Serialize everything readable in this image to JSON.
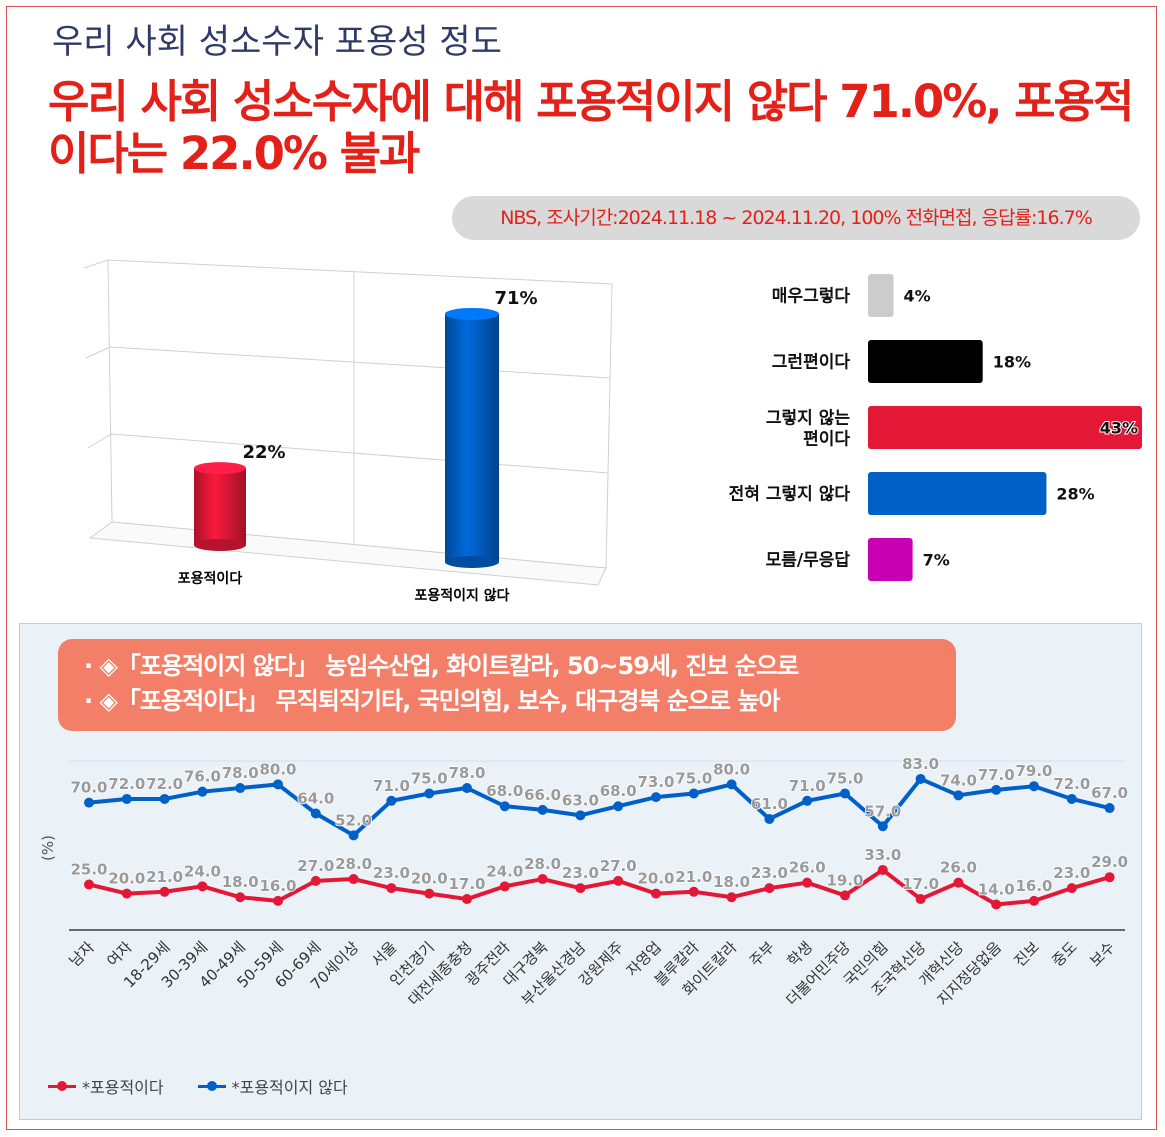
{
  "page": {
    "title": "우리 사회 성소수자 포용성 정도",
    "headline": "우리 사회 성소수자에 대해 포용적이지 않다 71.0%, 포용적이다는 22.0% 불과",
    "source": "NBS, 조사기간:2024.11.18 ~ 2024.11.20, 100% 전화면접, 응답률:16.7%",
    "callout": [
      "· ◈「포용적이지 않다」 농임수산업, 화이트칼라, 50~59세, 진보 순으로",
      "· ◈「포용적이다」 무직퇴직기타, 국민의힘, 보수, 대구경북 순으로 높아"
    ]
  },
  "colors": {
    "red": "#e31837",
    "blue": "#0060c8",
    "black": "#000000",
    "gray": "#cccccc",
    "magenta": "#c800b4",
    "headline_red": "#e32119"
  },
  "chart_data": [
    {
      "type": "bar",
      "title": "",
      "categories": [
        "포용적이다",
        "포용적이지 않다"
      ],
      "values": [
        22,
        71
      ],
      "value_labels": [
        "22%",
        "71%"
      ],
      "colors": [
        "#e31837",
        "#0060c8"
      ],
      "ylim": [
        0,
        75
      ]
    },
    {
      "type": "bar",
      "orientation": "horizontal",
      "categories": [
        "매우그렇다",
        "그런편이다",
        "그렇지 않는 편이다",
        "전혀 그렇지 않다",
        "모름/무응답"
      ],
      "values": [
        4,
        18,
        43,
        28,
        7
      ],
      "value_labels": [
        "4%",
        "18%",
        "43%",
        "28%",
        "7%"
      ],
      "colors": [
        "#cccccc",
        "#000000",
        "#e31837",
        "#0060c8",
        "#c800b4"
      ],
      "xlim": [
        0,
        43
      ]
    },
    {
      "type": "line",
      "ylabel": "(%)",
      "ylim": [
        0,
        100
      ],
      "x": [
        "남자",
        "여자",
        "18-29세",
        "30-39세",
        "40-49세",
        "50-59세",
        "60-69세",
        "70세이상",
        "서울",
        "인천경기",
        "대전세종충청",
        "광주전라",
        "대구경북",
        "부산울산경남",
        "강원제주",
        "자영업",
        "블루칼라",
        "화이트칼라",
        "주부",
        "학생",
        "더불어민주당",
        "국민의힘",
        "조국혁신당",
        "개혁신당",
        "지지정당없음",
        "진보",
        "중도",
        "보수"
      ],
      "series": [
        {
          "name": "*포용적이다",
          "color": "#e31837",
          "values": [
            25.0,
            20.0,
            21.0,
            24.0,
            18.0,
            16.0,
            27.0,
            28.0,
            23.0,
            20.0,
            17.0,
            24.0,
            28.0,
            23.0,
            27.0,
            20.0,
            21.0,
            18.0,
            23.0,
            26.0,
            19.0,
            33.0,
            17.0,
            26.0,
            14.0,
            16.0,
            23.0,
            29.0
          ],
          "labels": [
            "25.0",
            "20.0",
            "21.0",
            "24.0",
            "18.0",
            "16.0",
            "27.0",
            "28.0",
            "23.0",
            "20.0",
            "17.0",
            "24.0",
            "28.0",
            "23.0",
            "27.0",
            "20.0",
            "21.0",
            "18.0",
            "23.0",
            "26.0",
            "19.0",
            "33.0",
            "17.0",
            "26.0",
            "14.0",
            "16.0",
            "23.0",
            "29.0"
          ]
        },
        {
          "name": "*포용적이지 않다",
          "color": "#0060c8",
          "values": [
            70.0,
            72.0,
            72.0,
            76.0,
            78.0,
            80.0,
            64.0,
            52.0,
            71.0,
            75.0,
            78.0,
            68.0,
            66.0,
            63.0,
            68.0,
            73.0,
            75.0,
            80.0,
            61.0,
            71.0,
            75.0,
            57.0,
            83.0,
            74.0,
            77.0,
            79.0,
            72.0,
            67.0
          ],
          "labels": [
            "70.0",
            "72.0",
            "72.0",
            "76.0",
            "78.0",
            "80.0",
            "64.0",
            "52.0",
            "71.0",
            "75.0",
            "78.0",
            "68.0",
            "66.0",
            "63.0",
            "68.0",
            "73.0",
            "75.0",
            "80.0",
            "61.0",
            "71.0",
            "75.0",
            "57.0",
            "83.0",
            "74.0",
            "77.0",
            "79.0",
            "72.0",
            "67.0"
          ]
        }
      ],
      "legend": [
        "*포용적이다",
        "*포용적이지 않다"
      ]
    }
  ]
}
